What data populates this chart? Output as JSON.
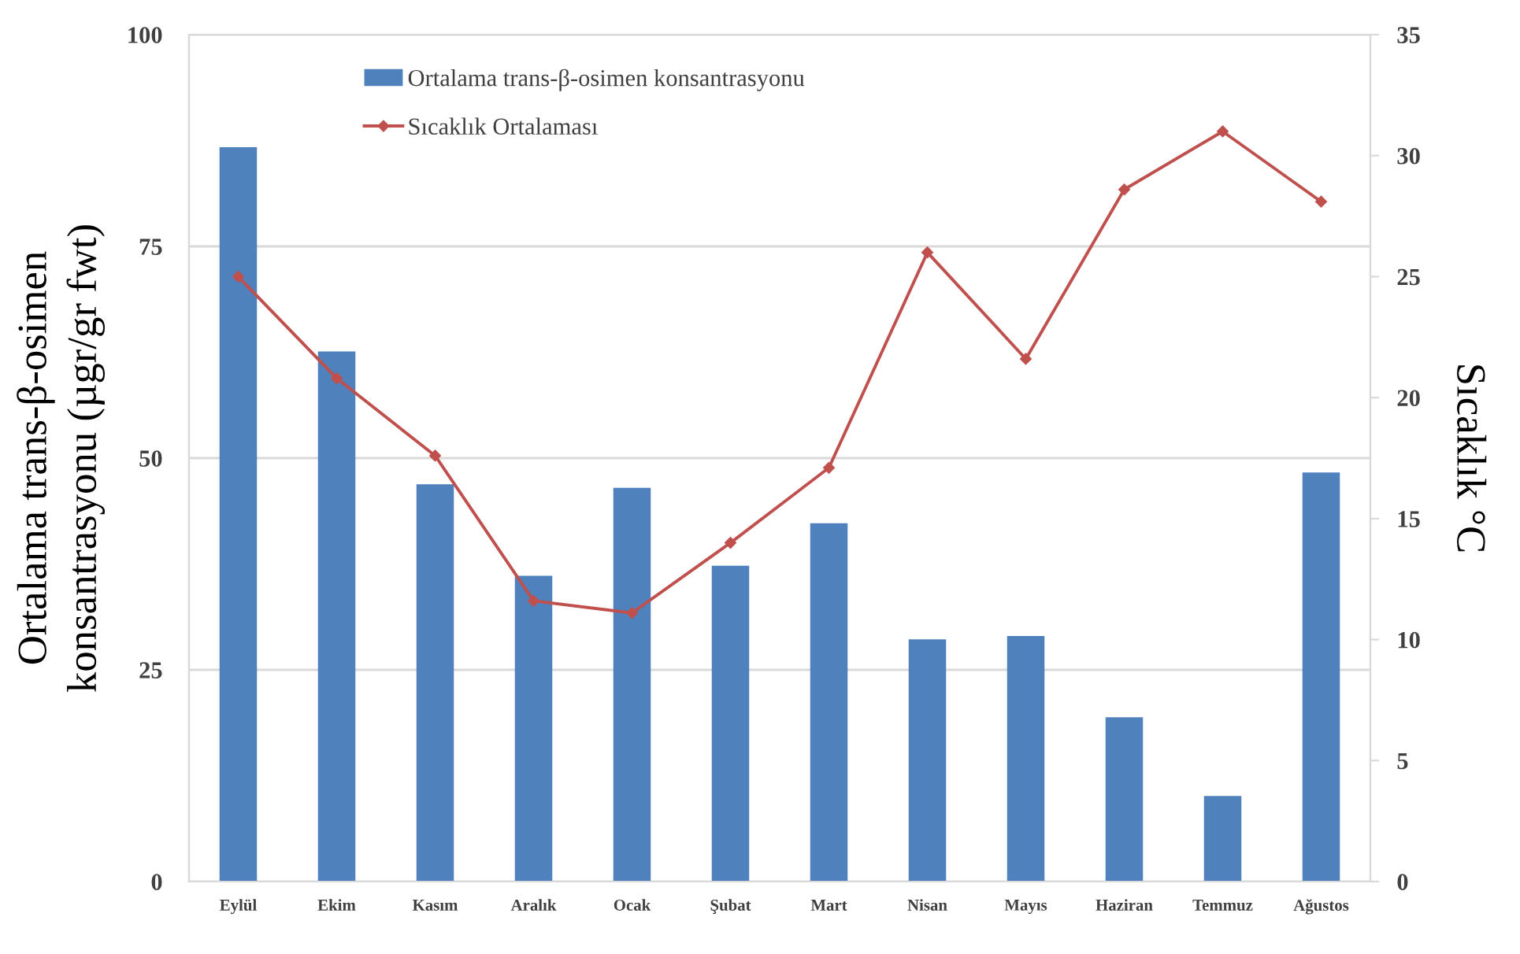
{
  "chart_data": {
    "type": "bar",
    "categories": [
      "Eylül",
      "Ekim",
      "Kasım",
      "Aralık",
      "Ocak",
      "Şubat",
      "Mart",
      "Nisan",
      "Mayıs",
      "Haziran",
      "Temmuz",
      "Ağustos"
    ],
    "series": [
      {
        "name": "Ortalama trans-β-osimen konsantrasyonu",
        "color": "#4f81bd",
        "values": [
          86.7,
          62.6,
          46.9,
          36.1,
          46.5,
          37.3,
          42.3,
          28.6,
          29.0,
          19.4,
          10.1,
          48.3
        ]
      },
      {
        "name": "Sıcaklık Ortalaması",
        "type": "line",
        "axis": "y2",
        "color": "#c0504d",
        "marker": "diamond",
        "values": [
          25.0,
          20.8,
          17.6,
          11.6,
          11.1,
          14.0,
          17.1,
          26.0,
          21.6,
          28.6,
          31.0,
          28.1
        ]
      }
    ],
    "ylabel": "Ortalama trans-β-osimen\nkonsantrasyonu (µgr/gr fwt)",
    "y2label": "Sıcaklık °C",
    "ylim": [
      0,
      100
    ],
    "yticks": [
      0,
      25,
      50,
      75,
      100
    ],
    "y2lim": [
      0,
      35
    ],
    "y2ticks": [
      0,
      5,
      10,
      15,
      20,
      25,
      30,
      35
    ],
    "grid": "y",
    "legend": "top left"
  }
}
